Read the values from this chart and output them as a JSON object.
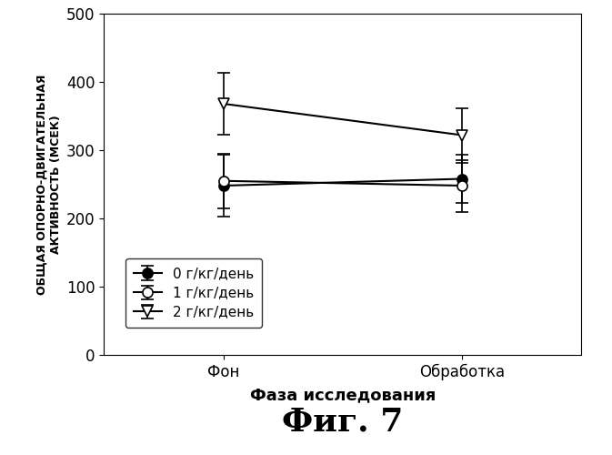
{
  "title": "Фиг. 7",
  "xlabel": "Фаза исследования",
  "ylabel": "ОБЩАЯ ОПОРНО-ДВИГАТЕЛЬНАЯ\nАКТИВНОСТЬ (МСЕК)",
  "xtick_labels": [
    "Фон",
    "Обработка"
  ],
  "xtick_positions": [
    0,
    1
  ],
  "ylim": [
    0,
    500
  ],
  "yticks": [
    0,
    100,
    200,
    300,
    400,
    500
  ],
  "series": [
    {
      "label": "0 г/кг/день",
      "x": [
        0,
        1
      ],
      "y": [
        248,
        258
      ],
      "yerr": [
        45,
        35
      ],
      "color": "#000000",
      "marker": "o",
      "marker_fill": "black",
      "linewidth": 1.5
    },
    {
      "label": "1 г/кг/день",
      "x": [
        0,
        1
      ],
      "y": [
        255,
        248
      ],
      "yerr": [
        40,
        38
      ],
      "color": "#000000",
      "marker": "o",
      "marker_fill": "white",
      "linewidth": 1.5
    },
    {
      "label": "2 г/кг/день",
      "x": [
        0,
        1
      ],
      "y": [
        368,
        322
      ],
      "yerr": [
        45,
        40
      ],
      "color": "#000000",
      "marker": "v",
      "marker_fill": "white",
      "linewidth": 1.5
    }
  ],
  "background_color": "#ffffff",
  "font_color": "#000000",
  "title_fontsize": 26,
  "xlabel_fontsize": 13,
  "ylabel_fontsize": 9,
  "tick_fontsize": 12,
  "legend_fontsize": 11
}
